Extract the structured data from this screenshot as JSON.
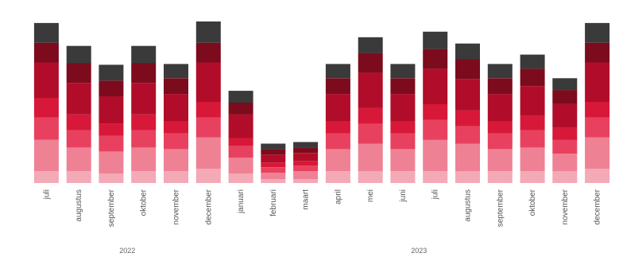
{
  "chart_data": {
    "type": "bar",
    "stacked": true,
    "title": "",
    "xlabel": "",
    "ylabel": "",
    "legend": "none",
    "grid": false,
    "ylim": [
      0,
      210
    ],
    "categories": [
      "juli",
      "augustus",
      "september",
      "oktober",
      "november",
      "december",
      "januari",
      "februari",
      "maart",
      "april",
      "mei",
      "juni",
      "juli",
      "augustus",
      "september",
      "oktober",
      "november",
      "december"
    ],
    "year_groups": [
      {
        "label": "2022",
        "start": 0,
        "end": 5
      },
      {
        "label": "2023",
        "start": 6,
        "end": 17
      }
    ],
    "segment_colors": [
      "#f3a9b6",
      "#ef8194",
      "#e8415f",
      "#d81838",
      "#b10d2a",
      "#7c0b1d",
      "#3a3a3a"
    ],
    "stacks": [
      [
        15,
        40,
        28,
        25,
        45,
        25,
        25
      ],
      [
        15,
        30,
        22,
        20,
        40,
        25,
        22
      ],
      [
        12,
        28,
        20,
        15,
        35,
        20,
        20
      ],
      [
        15,
        30,
        22,
        20,
        40,
        25,
        22
      ],
      [
        15,
        28,
        20,
        15,
        35,
        20,
        18
      ],
      [
        18,
        40,
        25,
        20,
        50,
        25,
        27
      ],
      [
        12,
        20,
        15,
        10,
        30,
        15,
        15
      ],
      [
        5,
        8,
        7,
        6,
        10,
        7,
        7
      ],
      [
        5,
        10,
        7,
        6,
        10,
        7,
        7
      ],
      [
        15,
        28,
        20,
        15,
        35,
        20,
        18
      ],
      [
        15,
        35,
        25,
        20,
        45,
        25,
        20
      ],
      [
        15,
        28,
        20,
        15,
        35,
        20,
        18
      ],
      [
        15,
        40,
        25,
        20,
        45,
        25,
        22
      ],
      [
        15,
        35,
        22,
        20,
        40,
        25,
        20
      ],
      [
        15,
        28,
        20,
        15,
        35,
        20,
        18
      ],
      [
        15,
        30,
        22,
        18,
        38,
        22,
        18
      ],
      [
        15,
        22,
        18,
        15,
        30,
        18,
        15
      ],
      [
        18,
        40,
        25,
        20,
        50,
        25,
        25
      ]
    ]
  }
}
